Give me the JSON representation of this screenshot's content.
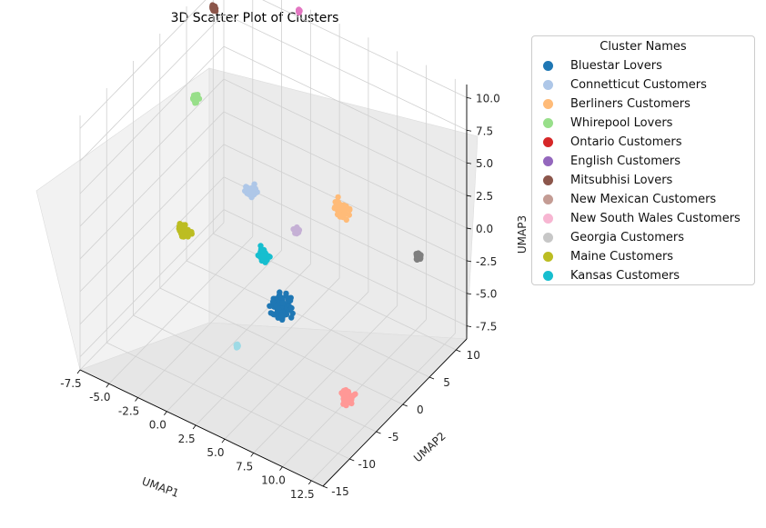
{
  "chart_data": {
    "type": "scatter",
    "projection": "3d",
    "title": "3D Scatter Plot of Clusters",
    "xlabel": "UMAP1",
    "ylabel": "UMAP2",
    "zlabel": "UMAP3",
    "xlim": [
      -7.5,
      13.5
    ],
    "ylim": [
      -15,
      12
    ],
    "zlim": [
      -8.5,
      11
    ],
    "x_ticks": [
      "-7.5",
      "-5.0",
      "-2.5",
      "0.0",
      "2.5",
      "5.0",
      "7.5",
      "10.0",
      "12.5"
    ],
    "y_ticks": [
      "-15",
      "-10",
      "-5",
      "0",
      "5",
      "10"
    ],
    "z_ticks": [
      "-7.5",
      "-5.0",
      "-2.5",
      "0.0",
      "2.5",
      "5.0",
      "7.5",
      "10.0"
    ],
    "grid": true,
    "legend": {
      "title": "Cluster Names",
      "placement": "outside-right",
      "entries": [
        {
          "name": "Bluestar Lovers",
          "color": "#1f77b4"
        },
        {
          "name": "Connetticut Customers",
          "color": "#aec7e8"
        },
        {
          "name": "Berliners Customers",
          "color": "#ffbb78"
        },
        {
          "name": "Whirepool Lovers",
          "color": "#98df8a"
        },
        {
          "name": "Ontario Customers",
          "color": "#d62728"
        },
        {
          "name": "English Customers",
          "color": "#9467bd"
        },
        {
          "name": "Mitsubhisi Lovers",
          "color": "#8c564b"
        },
        {
          "name": "New Mexican Customers",
          "color": "#c49c94"
        },
        {
          "name": "New South Wales Customers",
          "color": "#f7b6d2"
        },
        {
          "name": "Georgia Customers",
          "color": "#c7c7c7"
        },
        {
          "name": "Maine Customers",
          "color": "#bcbd22"
        },
        {
          "name": "Kansas Customers",
          "color": "#17becf"
        }
      ]
    },
    "clusters": [
      {
        "color": "#1f77b4",
        "x": 3.5,
        "y": -1.0,
        "z": -4.8,
        "spread": 1.2
      },
      {
        "color": "#aec7e8",
        "x": -1.0,
        "y": 3.0,
        "z": 0.5,
        "spread": 0.6
      },
      {
        "color": "#ffbb78",
        "x": 5.5,
        "y": 6.0,
        "z": 0.5,
        "spread": 0.8
      },
      {
        "color": "#98df8a",
        "x": -5.8,
        "y": 3.0,
        "z": 5.5,
        "spread": 0.4
      },
      {
        "color": "#8c564b",
        "x": -6.5,
        "y": 8.0,
        "z": 10.0,
        "spread": 0.3
      },
      {
        "color": "#e377c2",
        "x": -1.0,
        "y": 12.0,
        "z": 10.5,
        "spread": 0.15
      },
      {
        "color": "#7f7f7f",
        "x": 13.0,
        "y": 4.0,
        "z": 1.0,
        "spread": 0.35
      },
      {
        "color": "#ff9896",
        "x": 10.5,
        "y": -4.0,
        "z": -7.5,
        "spread": 0.7
      },
      {
        "color": "#bcbd22",
        "x": -4.5,
        "y": -2.0,
        "z": -2.0,
        "spread": 0.6
      },
      {
        "color": "#17becf",
        "x": 1.2,
        "y": 0.5,
        "z": -2.5,
        "spread": 0.6
      },
      {
        "color": "#c5b0d5",
        "x": 2.5,
        "y": 4.0,
        "z": -1.5,
        "spread": 0.3
      },
      {
        "color": "#9edae5",
        "x": 1.5,
        "y": -5.0,
        "z": -7.0,
        "spread": 0.2
      }
    ]
  }
}
